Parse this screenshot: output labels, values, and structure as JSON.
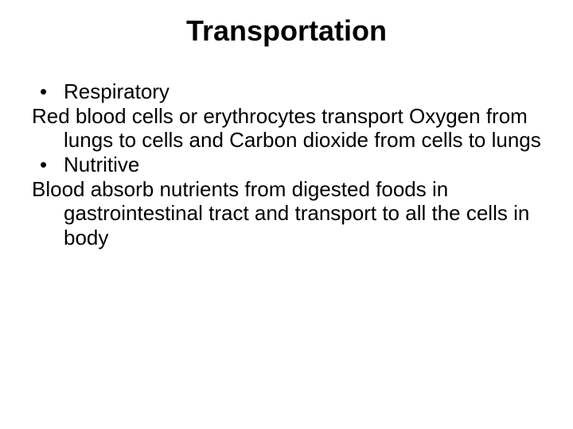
{
  "slide": {
    "title": "Transportation",
    "title_fontsize": 36,
    "title_fontweight": "bold",
    "title_align": "center",
    "body_fontsize": 26,
    "text_color": "#000000",
    "background_color": "#ffffff",
    "items": [
      {
        "type": "bullet",
        "text": "Respiratory"
      },
      {
        "type": "para",
        "text": "Red blood cells or erythrocytes transport Oxygen from lungs to cells and Carbon dioxide from cells to lungs"
      },
      {
        "type": "bullet",
        "text": "Nutritive"
      },
      {
        "type": "para",
        "text": "Blood absorb nutrients from digested foods in gastrointestinal tract and transport to all the cells in body"
      }
    ]
  }
}
